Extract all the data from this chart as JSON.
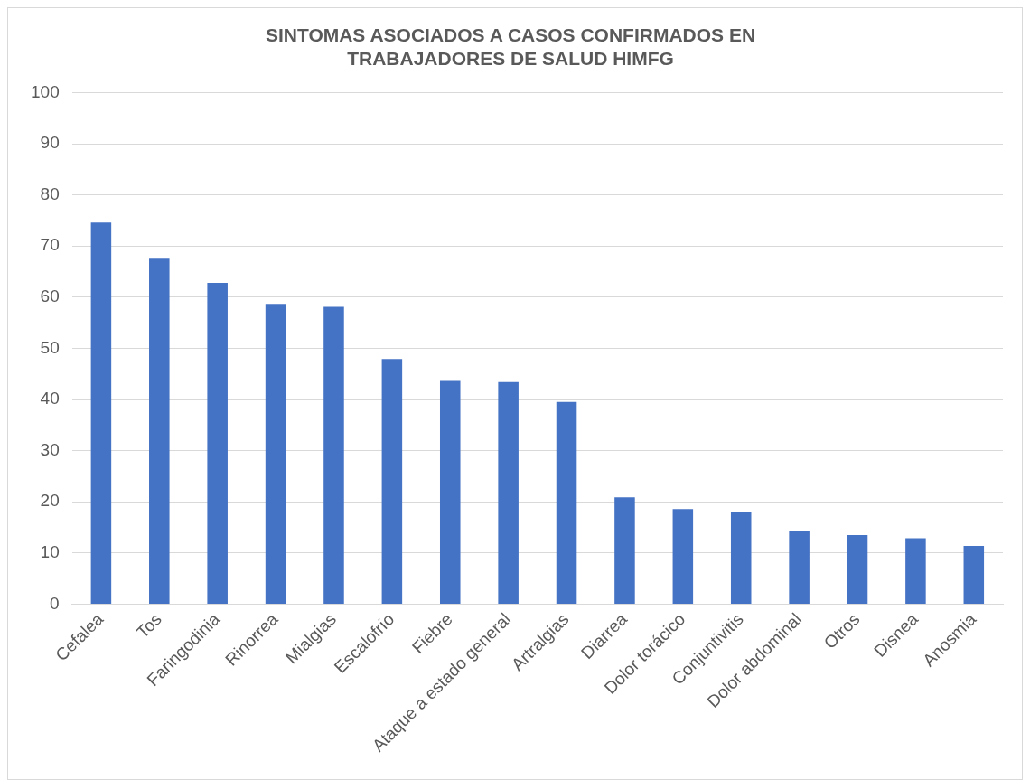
{
  "chart_data": {
    "type": "bar",
    "title": "SINTOMAS ASOCIADOS A CASOS CONFIRMADOS EN TRABAJADORES DE SALUD HIMFG",
    "categories": [
      "Cefalea",
      "Tos",
      "Faringodinia",
      "Rinorrea",
      "Mialgias",
      "Escalofrío",
      "Fiebre",
      "Ataque a estado general",
      "Artralgias",
      "Diarrea",
      "Dolor torácico",
      "Conjuntivitis",
      "Dolor abdominal",
      "Otros",
      "Disnea",
      "Anosmia"
    ],
    "values": [
      74.6,
      67.5,
      62.8,
      58.7,
      58.1,
      47.9,
      43.8,
      43.4,
      39.5,
      20.9,
      18.6,
      18.0,
      14.3,
      13.5,
      12.9,
      11.4
    ],
    "color": "#4472c4",
    "ylim": [
      0,
      100
    ],
    "yticks": [
      0,
      10,
      20,
      30,
      40,
      50,
      60,
      70,
      80,
      90,
      100
    ],
    "grid": "y",
    "legend": false
  }
}
